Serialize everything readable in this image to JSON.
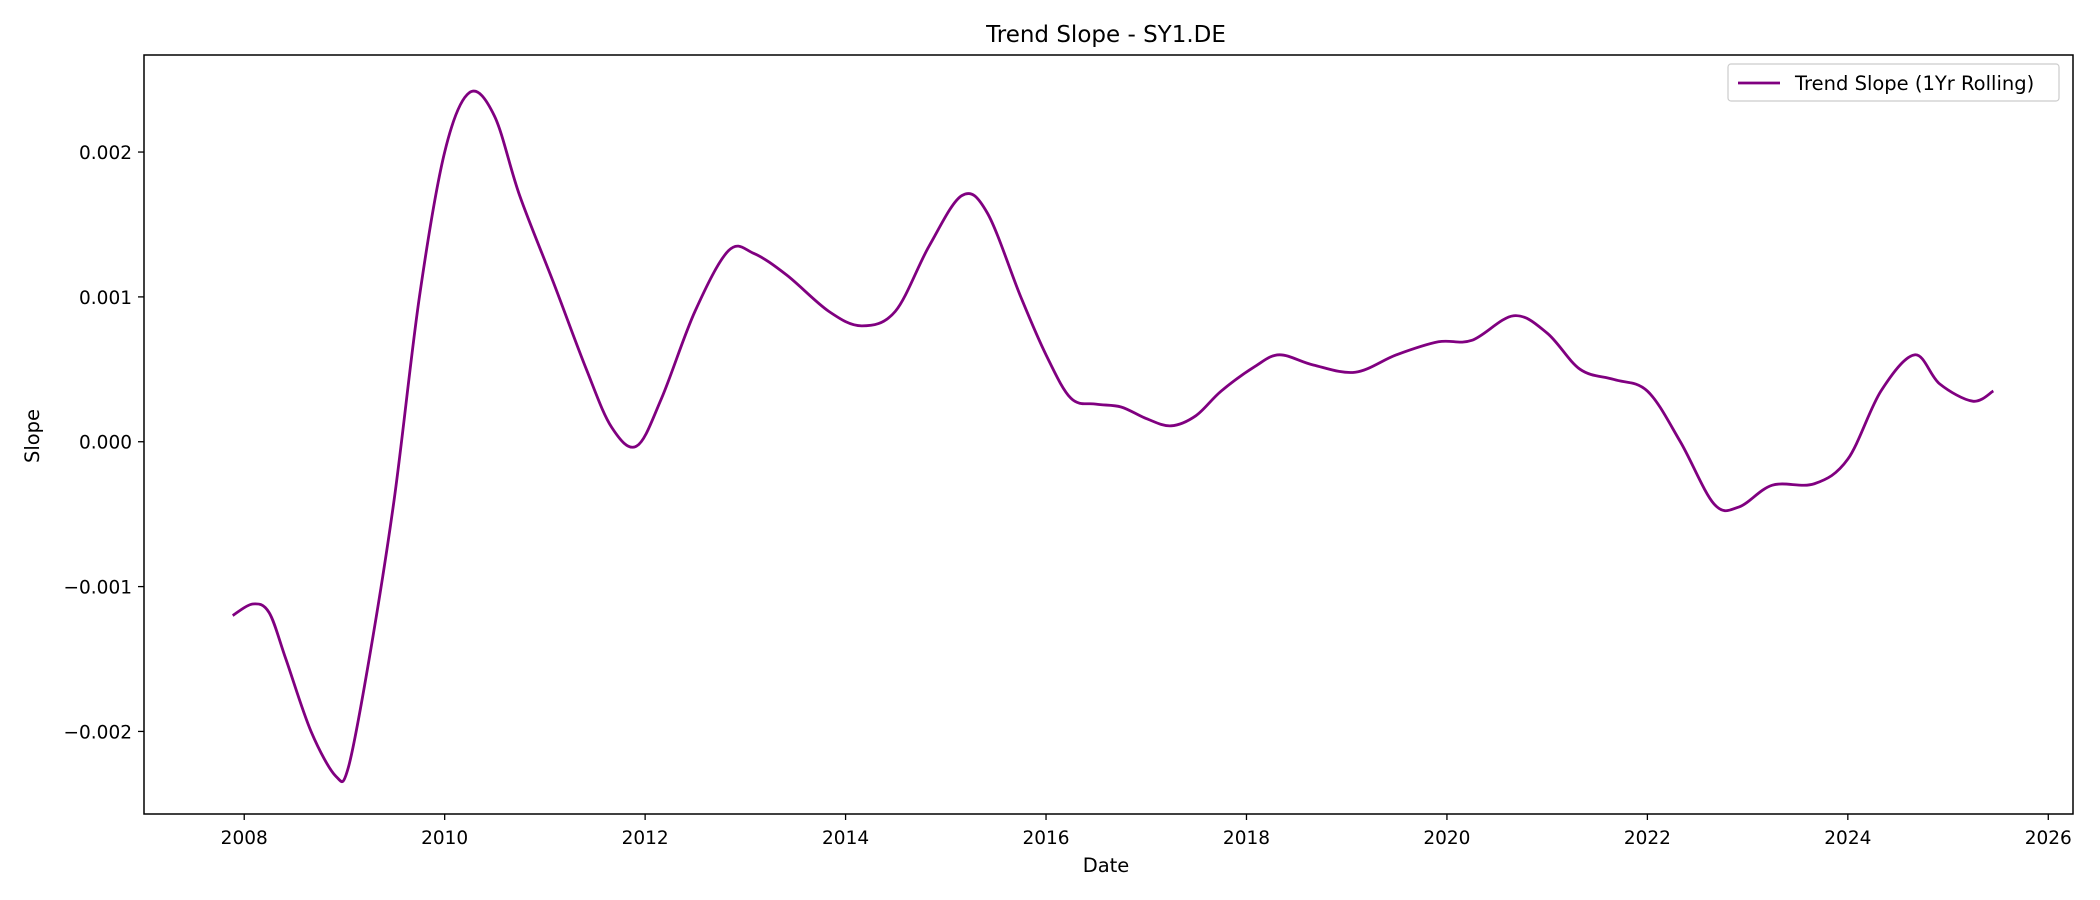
{
  "chart_data": {
    "type": "line",
    "title": "Trend Slope - SY1.DE",
    "xlabel": "Date",
    "ylabel": "Slope",
    "xlim": [
      "2007-01-01",
      "2026-04-01"
    ],
    "ylim": [
      -0.00257,
      0.00267
    ],
    "x_ticks": [
      "2008",
      "2010",
      "2012",
      "2014",
      "2016",
      "2018",
      "2020",
      "2022",
      "2024",
      "2026"
    ],
    "y_ticks": [
      -0.002,
      -0.001,
      0.0,
      0.001,
      0.002
    ],
    "y_tick_labels": [
      "−0.002",
      "−0.001",
      "0.000",
      "0.001",
      "0.002"
    ],
    "grid": false,
    "legend_position": "top-right",
    "series": [
      {
        "name": "Trend Slope (1Yr Rolling)",
        "color": "#800080",
        "points": [
          [
            "2007-11-20",
            -0.0012
          ],
          [
            "2008-02-01",
            -0.00112
          ],
          [
            "2008-04-01",
            -0.00118
          ],
          [
            "2008-06-01",
            -0.0015
          ],
          [
            "2008-09-01",
            -0.002
          ],
          [
            "2008-12-01",
            -0.00231
          ],
          [
            "2009-01-15",
            -0.00225
          ],
          [
            "2009-04-01",
            -0.0015
          ],
          [
            "2009-07-01",
            -0.0004
          ],
          [
            "2009-10-01",
            0.001
          ],
          [
            "2010-01-01",
            0.002
          ],
          [
            "2010-04-01",
            0.00241
          ],
          [
            "2010-07-01",
            0.00225
          ],
          [
            "2010-10-01",
            0.0017
          ],
          [
            "2011-02-01",
            0.0011
          ],
          [
            "2011-06-01",
            0.0005
          ],
          [
            "2011-09-01",
            0.0001
          ],
          [
            "2011-12-01",
            -3e-05
          ],
          [
            "2012-03-01",
            0.0003
          ],
          [
            "2012-07-01",
            0.0009
          ],
          [
            "2012-11-01",
            0.00132
          ],
          [
            "2013-02-01",
            0.0013
          ],
          [
            "2013-06-01",
            0.00115
          ],
          [
            "2013-11-01",
            0.0009
          ],
          [
            "2014-03-01",
            0.0008
          ],
          [
            "2014-07-01",
            0.0009
          ],
          [
            "2014-11-01",
            0.00135
          ],
          [
            "2015-03-01",
            0.0017
          ],
          [
            "2015-06-01",
            0.00158
          ],
          [
            "2015-10-01",
            0.001
          ],
          [
            "2016-01-01",
            0.0006
          ],
          [
            "2016-04-01",
            0.0003
          ],
          [
            "2016-07-01",
            0.00026
          ],
          [
            "2016-10-01",
            0.00024
          ],
          [
            "2017-01-01",
            0.00016
          ],
          [
            "2017-04-01",
            0.00011
          ],
          [
            "2017-07-01",
            0.00018
          ],
          [
            "2017-10-01",
            0.00035
          ],
          [
            "2018-02-01",
            0.00052
          ],
          [
            "2018-05-01",
            0.0006
          ],
          [
            "2018-09-01",
            0.00053
          ],
          [
            "2019-02-01",
            0.00048
          ],
          [
            "2019-07-01",
            0.0006
          ],
          [
            "2019-12-01",
            0.00069
          ],
          [
            "2020-04-01",
            0.0007
          ],
          [
            "2020-09-01",
            0.00087
          ],
          [
            "2021-01-01",
            0.00075
          ],
          [
            "2021-05-01",
            0.0005
          ],
          [
            "2021-09-01",
            0.00043
          ],
          [
            "2022-01-01",
            0.00035
          ],
          [
            "2022-05-01",
            0.0
          ],
          [
            "2022-09-01",
            -0.00043
          ],
          [
            "2022-12-01",
            -0.00045
          ],
          [
            "2023-04-01",
            -0.0003
          ],
          [
            "2023-09-01",
            -0.00029
          ],
          [
            "2024-01-01",
            -0.00012
          ],
          [
            "2024-05-01",
            0.00035
          ],
          [
            "2024-09-01",
            0.0006
          ],
          [
            "2024-12-01",
            0.0004
          ],
          [
            "2025-04-01",
            0.00028
          ],
          [
            "2025-06-15",
            0.00035
          ]
        ]
      }
    ]
  }
}
